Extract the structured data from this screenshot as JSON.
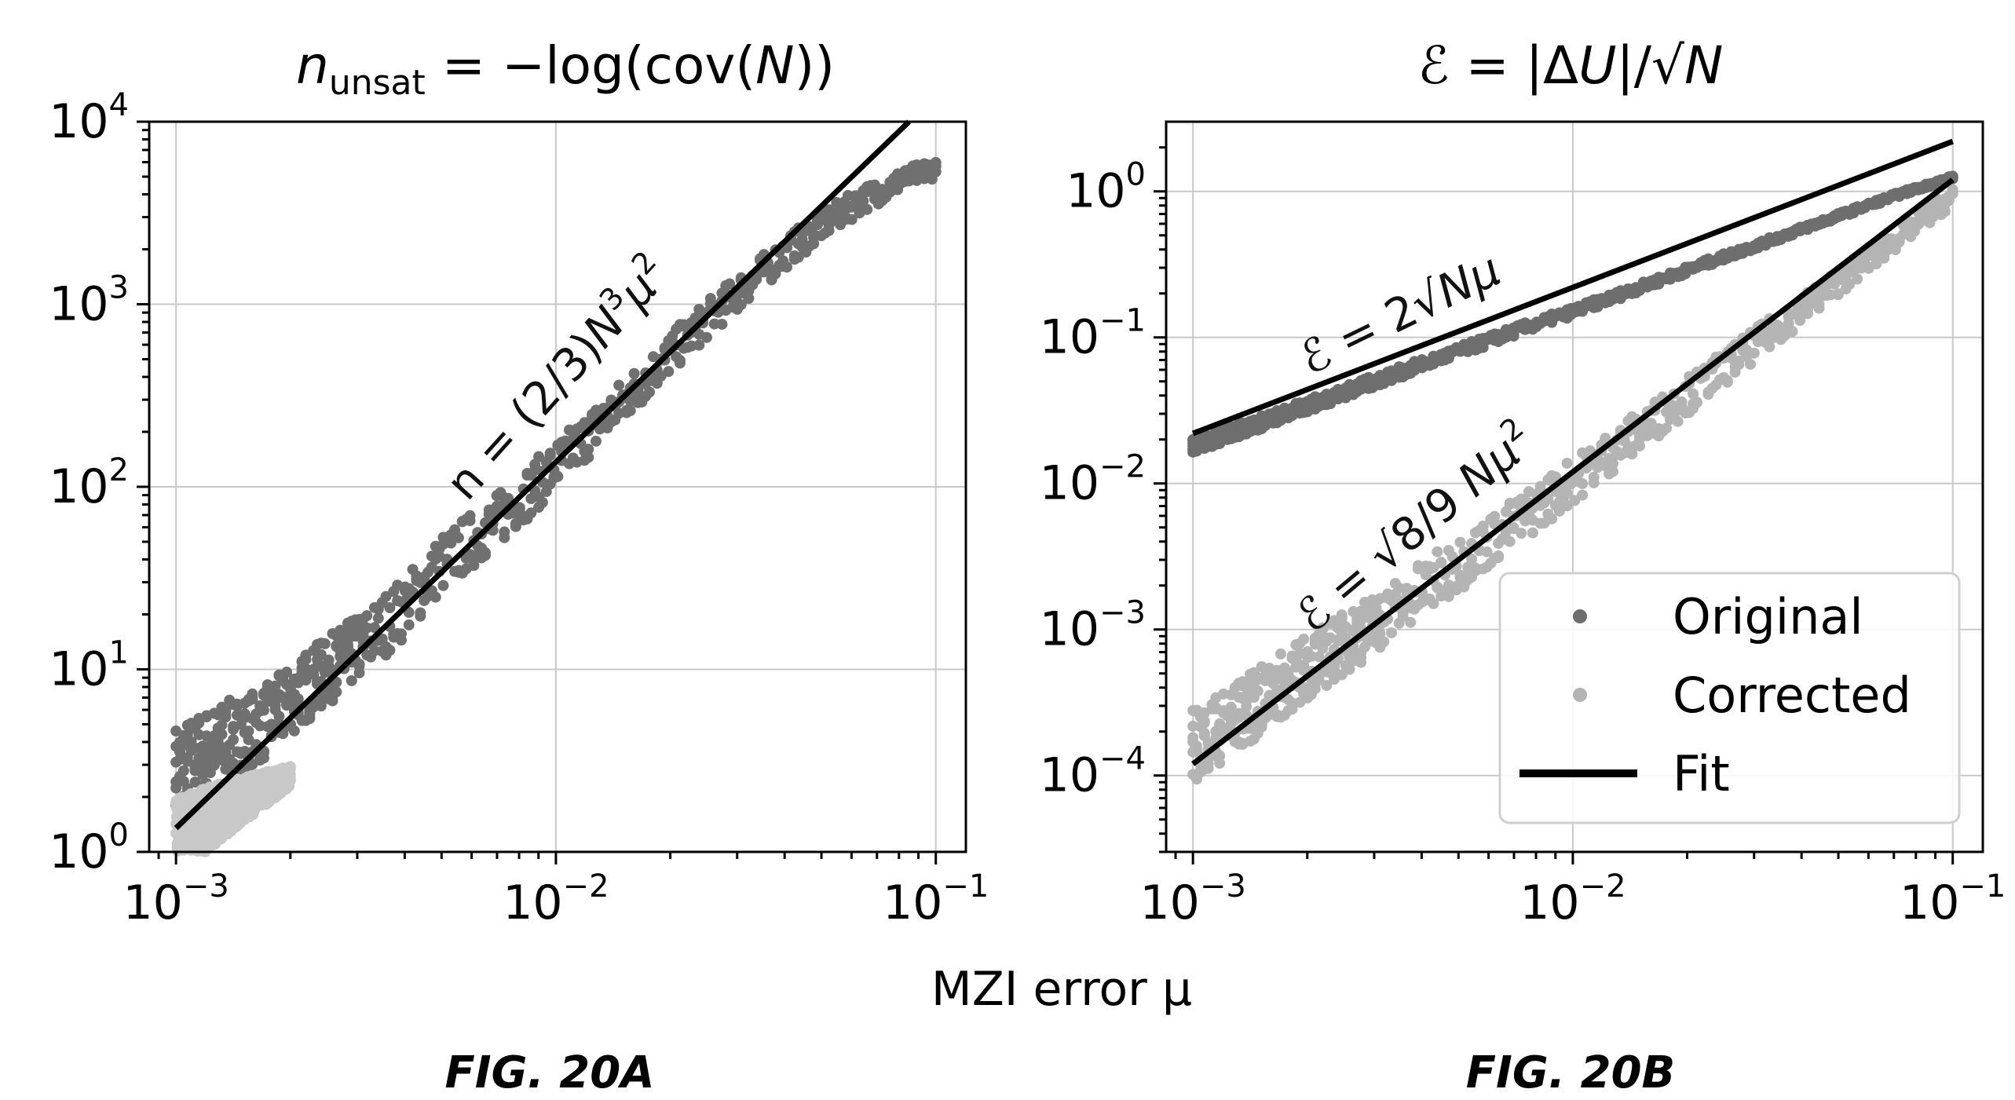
{
  "chart_data": [
    {
      "type": "scatter",
      "figure_label": "FIG. 20A",
      "title": "n_unsat = −log(cov(N))",
      "title_parts": {
        "var": "n",
        "sub": "unsat",
        "rest": " = −log(cov(",
        "arg": "N",
        "close": "))"
      },
      "xlabel": "MZI error μ",
      "xscale": "log",
      "yscale": "log",
      "xlim": [
        0.00085,
        0.12
      ],
      "ylim": [
        1,
        10000
      ],
      "grid": true,
      "x_ticks": [
        {
          "base": "10",
          "exp": "−3",
          "value": 0.001
        },
        {
          "base": "10",
          "exp": "−2",
          "value": 0.01
        },
        {
          "base": "10",
          "exp": "−1",
          "value": 0.1
        }
      ],
      "y_ticks": [
        {
          "base": "10",
          "exp": "0",
          "value": 1
        },
        {
          "base": "10",
          "exp": "1",
          "value": 10
        },
        {
          "base": "10",
          "exp": "2",
          "value": 100
        },
        {
          "base": "10",
          "exp": "3",
          "value": 1000
        },
        {
          "base": "10",
          "exp": "4",
          "value": 10000
        }
      ],
      "annotation": "n = (2/3)N³μ²",
      "annotation_parts": {
        "pre": "n = (2/3)",
        "var": "N",
        "exp1": "3",
        "mid": "μ",
        "exp2": "2"
      },
      "series": [
        {
          "name": "Original",
          "color": "#707070",
          "x": [
            0.001,
            0.0013,
            0.0017,
            0.0022,
            0.003,
            0.004,
            0.005,
            0.007,
            0.01,
            0.013,
            0.017,
            0.022,
            0.03,
            0.04,
            0.05,
            0.065,
            0.08,
            0.1
          ],
          "y": [
            3,
            4,
            5,
            8,
            13,
            22,
            38,
            65,
            130,
            220,
            380,
            650,
            1150,
            1900,
            2700,
            3800,
            4700,
            5600
          ]
        },
        {
          "name": "Corrected",
          "color": "#c8c8c8",
          "x": [
            0.001,
            0.0012,
            0.0014,
            0.0017,
            0.002
          ],
          "y": [
            1.2,
            1.5,
            1.8,
            2.2,
            2.6
          ]
        },
        {
          "name": "Fit",
          "color": "#000000",
          "x": [
            0.001,
            0.085
          ],
          "y": [
            1.35,
            10000
          ]
        }
      ]
    },
    {
      "type": "scatter",
      "figure_label": "FIG. 20B",
      "title": "ℰ = |ΔU|/√N",
      "title_parts": {
        "var": "ℰ",
        "rest": " = |Δ",
        "u": "U",
        "rest2": "|/√",
        "arg": "N"
      },
      "xlabel": "MZI error μ",
      "xscale": "log",
      "yscale": "log",
      "xlim": [
        0.00085,
        0.12
      ],
      "ylim": [
        3e-05,
        3
      ],
      "grid": true,
      "x_ticks": [
        {
          "base": "10",
          "exp": "−3",
          "value": 0.001
        },
        {
          "base": "10",
          "exp": "−2",
          "value": 0.01
        },
        {
          "base": "10",
          "exp": "−1",
          "value": 0.1
        }
      ],
      "y_ticks": [
        {
          "base": "10",
          "exp": "−4",
          "value": 0.0001
        },
        {
          "base": "10",
          "exp": "−3",
          "value": 0.001
        },
        {
          "base": "10",
          "exp": "−2",
          "value": 0.01
        },
        {
          "base": "10",
          "exp": "−1",
          "value": 0.1
        },
        {
          "base": "10",
          "exp": "0",
          "value": 1
        }
      ],
      "annotations": [
        {
          "text": "ℰ = 2√Nμ",
          "parts": {
            "pre": "ℰ = 2√",
            "var": "N",
            "post": "μ"
          }
        },
        {
          "text": "ℰ = √8/9 Nμ²",
          "parts": {
            "pre": "ℰ = √8/9 ",
            "var": "N",
            "post": "μ",
            "exp": "2"
          }
        }
      ],
      "legend": {
        "position": "lower-right",
        "entries": [
          "Original",
          "Corrected",
          "Fit"
        ]
      },
      "series": [
        {
          "name": "Original",
          "color": "#6e6e6e",
          "x": [
            0.001,
            0.0015,
            0.002,
            0.003,
            0.005,
            0.007,
            0.01,
            0.015,
            0.02,
            0.03,
            0.05,
            0.07,
            0.1
          ],
          "y": [
            0.018,
            0.026,
            0.034,
            0.05,
            0.08,
            0.11,
            0.15,
            0.22,
            0.29,
            0.42,
            0.68,
            0.93,
            1.25
          ]
        },
        {
          "name": "Corrected",
          "color": "#b4b4b4",
          "x": [
            0.001,
            0.0015,
            0.002,
            0.003,
            0.005,
            0.007,
            0.01,
            0.015,
            0.02,
            0.03,
            0.05,
            0.07,
            0.1
          ],
          "y": [
            0.00016,
            0.00032,
            0.00055,
            0.0011,
            0.0028,
            0.0053,
            0.0105,
            0.023,
            0.04,
            0.088,
            0.24,
            0.46,
            0.92
          ]
        },
        {
          "name": "Fit (2√Nμ)",
          "color": "#000000",
          "x": [
            0.001,
            0.1
          ],
          "y": [
            0.022,
            2.2
          ]
        },
        {
          "name": "Fit (√8/9 Nμ²)",
          "color": "#000000",
          "x": [
            0.001,
            0.1
          ],
          "y": [
            0.00012,
            1.2
          ]
        }
      ]
    }
  ]
}
